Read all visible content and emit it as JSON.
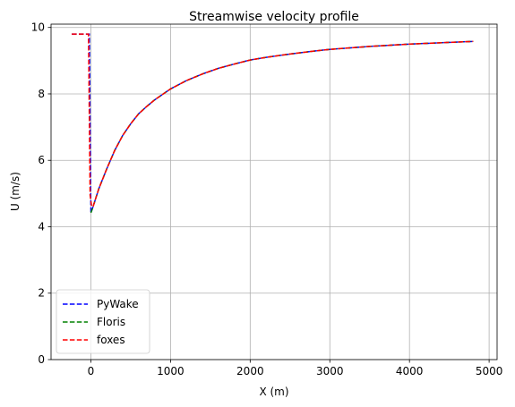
{
  "chart_data": {
    "type": "line",
    "title": "Streamwise velocity profile",
    "xlabel": "X (m)",
    "ylabel": "U (m/s)",
    "xlim": [
      -500,
      5100
    ],
    "ylim": [
      0,
      10.1
    ],
    "xticks": [
      0,
      1000,
      2000,
      3000,
      4000,
      5000
    ],
    "yticks": [
      0,
      2,
      4,
      6,
      8,
      10
    ],
    "grid": true,
    "legend_position": "lower-left",
    "series": [
      {
        "name": "PyWake",
        "color": "#0000ff",
        "dash": "dashed",
        "x": [
          -240,
          -20,
          0,
          20,
          100,
          200,
          300,
          400,
          500,
          600,
          700,
          800,
          1000,
          1200,
          1400,
          1600,
          1800,
          2000,
          2200,
          2500,
          2800,
          3000,
          3500,
          4000,
          4500,
          4800
        ],
        "y": [
          9.8,
          9.8,
          4.42,
          4.55,
          5.15,
          5.75,
          6.3,
          6.75,
          7.1,
          7.4,
          7.62,
          7.82,
          8.15,
          8.4,
          8.6,
          8.77,
          8.9,
          9.02,
          9.1,
          9.2,
          9.29,
          9.34,
          9.43,
          9.5,
          9.55,
          9.58
        ]
      },
      {
        "name": "Floris",
        "color": "#008000",
        "dash": "dashed",
        "x": [
          0,
          20,
          100,
          200,
          300,
          400,
          500,
          600,
          700,
          800,
          1000,
          1200,
          1400,
          1600,
          1800,
          2000,
          2200,
          2500,
          2800,
          3000,
          3500,
          4000,
          4500,
          4800
        ],
        "y": [
          4.42,
          4.55,
          5.15,
          5.75,
          6.3,
          6.75,
          7.1,
          7.4,
          7.62,
          7.82,
          8.15,
          8.4,
          8.6,
          8.77,
          8.9,
          9.02,
          9.1,
          9.2,
          9.29,
          9.34,
          9.43,
          9.5,
          9.55,
          9.58
        ]
      },
      {
        "name": "foxes",
        "color": "#ff0000",
        "dash": "dashed",
        "x": [
          -240,
          -30,
          -10,
          10,
          30,
          100,
          200,
          300,
          400,
          500,
          600,
          700,
          800,
          1000,
          1200,
          1400,
          1600,
          1800,
          2000,
          2200,
          2500,
          2800,
          3000,
          3500,
          4000,
          4500,
          4800
        ],
        "y": [
          9.8,
          9.8,
          4.95,
          4.6,
          4.62,
          5.15,
          5.75,
          6.3,
          6.75,
          7.1,
          7.4,
          7.62,
          7.82,
          8.15,
          8.4,
          8.6,
          8.77,
          8.9,
          9.02,
          9.1,
          9.2,
          9.29,
          9.34,
          9.43,
          9.5,
          9.55,
          9.58
        ]
      }
    ]
  }
}
